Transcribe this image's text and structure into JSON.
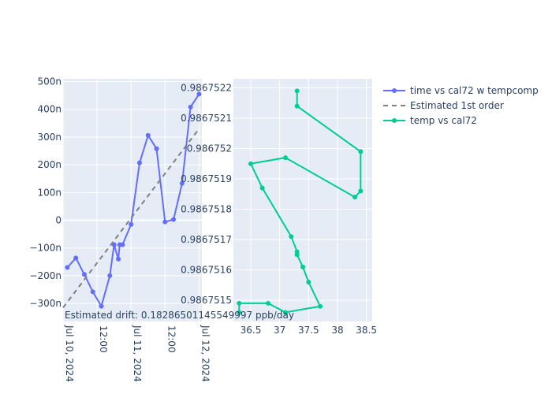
{
  "chart_data": [
    {
      "type": "line",
      "panel": "left",
      "x_axis": {
        "type": "date",
        "range": [
          "2024-07-10T00:00",
          "2024-07-12T01:00"
        ],
        "ticks": [
          {
            "value": "2024-07-10T00:00",
            "label": "Jul 10, 2024"
          },
          {
            "value": "2024-07-10T12:00",
            "label": "12:00"
          },
          {
            "value": "2024-07-11T00:00",
            "label": "Jul 11, 2024"
          },
          {
            "value": "2024-07-11T12:00",
            "label": "12:00"
          },
          {
            "value": "2024-07-12T00:00",
            "label": "Jul 12, 2024"
          }
        ]
      },
      "y_axis": {
        "range": [
          -3.65e-07,
          5.1e-07
        ],
        "ticks": [
          {
            "value": 5e-07,
            "label": "500n"
          },
          {
            "value": 4e-07,
            "label": "400n"
          },
          {
            "value": 3e-07,
            "label": "300n"
          },
          {
            "value": 2e-07,
            "label": "200n"
          },
          {
            "value": 1e-07,
            "label": "100n"
          },
          {
            "value": 0,
            "label": "0"
          },
          {
            "value": -1e-07,
            "label": "−100n"
          },
          {
            "value": -2e-07,
            "label": "−200n"
          },
          {
            "value": -3e-07,
            "label": "−300n"
          }
        ]
      },
      "series": [
        {
          "name": "time vs cal72 w tempcomp",
          "color": "#636efa",
          "mode": "lines+markers",
          "x": [
            "2024-07-10T01:30",
            "2024-07-10T04:30",
            "2024-07-10T07:30",
            "2024-07-10T10:30",
            "2024-07-10T13:30",
            "2024-07-10T16:30",
            "2024-07-10T18:00",
            "2024-07-10T19:30",
            "2024-07-10T20:00",
            "2024-07-10T21:00",
            "2024-07-11T00:00",
            "2024-07-11T03:00",
            "2024-07-11T06:00",
            "2024-07-11T09:00",
            "2024-07-11T12:00",
            "2024-07-11T15:00",
            "2024-07-11T18:00",
            "2024-07-11T21:00",
            "2024-07-12T00:00"
          ],
          "y": [
            -1.7e-07,
            -1.36e-07,
            -1.95e-07,
            -2.58e-07,
            -3.1e-07,
            -2e-07,
            -8.8e-08,
            -1.4e-07,
            -8.8e-08,
            -8.8e-08,
            -1.5e-08,
            2.07e-07,
            3.06e-07,
            2.58e-07,
            -6e-09,
            3e-09,
            1.33e-07,
            4.08e-07,
            4.55e-07
          ]
        },
        {
          "name": "Estimated 1st order",
          "color": "#808080",
          "mode": "dashed-line",
          "x": [
            "2024-07-10T00:00",
            "2024-07-12T00:00"
          ],
          "y": [
            -3.15e-07,
            3.3e-07
          ]
        }
      ],
      "annotation": "Estimated drift:  0.18286501145549997 ppb/day"
    },
    {
      "type": "line",
      "panel": "right",
      "x_axis": {
        "range": [
          36.2,
          38.6
        ],
        "ticks": [
          {
            "value": 36.5,
            "label": "36.5"
          },
          {
            "value": 37,
            "label": "37"
          },
          {
            "value": 37.5,
            "label": "37.5"
          },
          {
            "value": 38,
            "label": "38"
          },
          {
            "value": 38.5,
            "label": "38.5"
          }
        ]
      },
      "y_axis": {
        "range": [
          0.98675143,
          0.98675223
        ],
        "ticks": [
          {
            "value": 0.9867515,
            "label": "0.9867515"
          },
          {
            "value": 0.9867516,
            "label": "0.9867516"
          },
          {
            "value": 0.9867517,
            "label": "0.9867517"
          },
          {
            "value": 0.9867518,
            "label": "0.9867518"
          },
          {
            "value": 0.9867519,
            "label": "0.9867519"
          },
          {
            "value": 0.986752,
            "label": "0.986752"
          },
          {
            "value": 0.9867521,
            "label": "0.9867521"
          },
          {
            "value": 0.9867522,
            "label": "0.9867522"
          }
        ]
      },
      "series": [
        {
          "name": "temp vs cal72",
          "color": "#00cc96",
          "mode": "lines+markers",
          "x": [
            36.3,
            36.3,
            36.8,
            37.1,
            37.7,
            37.5,
            37.4,
            37.3,
            37.3,
            37.2,
            36.7,
            36.5,
            37.1,
            38.3,
            38.4,
            38.4,
            37.3,
            37.3
          ],
          "y": [
            0.98675146,
            0.98675149,
            0.98675149,
            0.98675146,
            0.98675148,
            0.98675156,
            0.98675161,
            0.98675165,
            0.98675166,
            0.98675171,
            0.98675187,
            0.98675195,
            0.98675197,
            0.98675184,
            0.98675186,
            0.98675199,
            0.98675214,
            0.98675219
          ]
        }
      ]
    }
  ]
}
